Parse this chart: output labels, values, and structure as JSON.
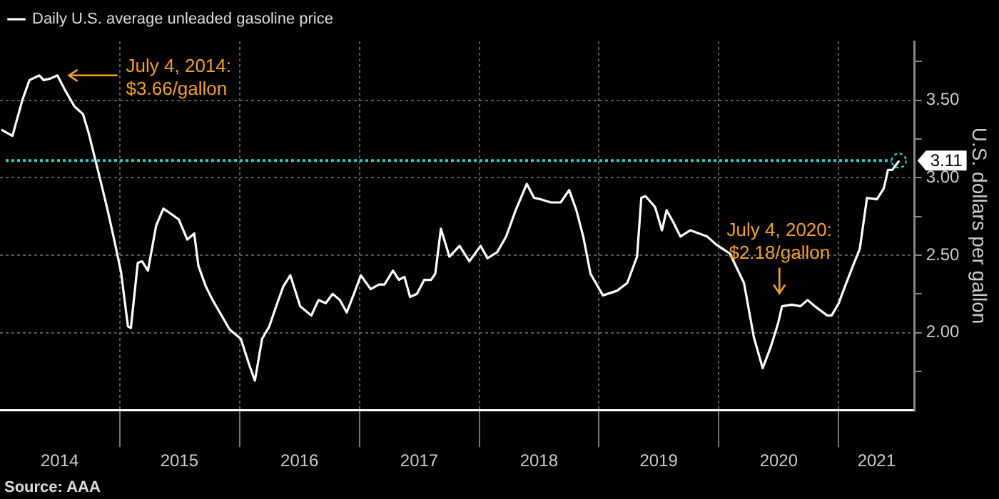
{
  "chart_data": {
    "type": "line",
    "series": [
      {
        "name": "Daily U.S. average unleaded gasoline price",
        "color": "#ffffff",
        "x": [
          "2014-01-05",
          "2014-02-08",
          "2014-03-10",
          "2014-04-01",
          "2014-05-01",
          "2014-05-14",
          "2014-06-04",
          "2014-06-25",
          "2014-07-17",
          "2014-08-16",
          "2014-09-11",
          "2014-09-28",
          "2014-10-24",
          "2014-11-23",
          "2014-12-15",
          "2015-01-05",
          "2015-01-26",
          "2015-02-04",
          "2015-02-25",
          "2015-03-10",
          "2015-03-28",
          "2015-04-22",
          "2015-05-14",
          "2015-06-04",
          "2015-06-30",
          "2015-07-26",
          "2015-08-16",
          "2015-08-29",
          "2015-09-20",
          "2015-10-11",
          "2015-11-02",
          "2015-12-02",
          "2016-01-05",
          "2016-01-31",
          "2016-02-17",
          "2016-03-10",
          "2016-04-01",
          "2016-04-22",
          "2016-05-14",
          "2016-06-04",
          "2016-07-04",
          "2016-08-07",
          "2016-08-29",
          "2016-09-20",
          "2016-10-11",
          "2016-11-02",
          "2016-11-23",
          "2016-12-15",
          "2017-01-05",
          "2017-02-04",
          "2017-03-01",
          "2017-03-18",
          "2017-04-13",
          "2017-05-01",
          "2017-05-18",
          "2017-06-04",
          "2017-06-25",
          "2017-07-17",
          "2017-08-07",
          "2017-08-20",
          "2017-09-06",
          "2017-10-02",
          "2017-11-02",
          "2017-12-02",
          "2018-01-05",
          "2018-01-26",
          "2018-02-25",
          "2018-03-24",
          "2018-04-22",
          "2018-05-26",
          "2018-06-17",
          "2018-07-08",
          "2018-08-07",
          "2018-09-06",
          "2018-10-02",
          "2018-10-24",
          "2018-11-14",
          "2018-12-06",
          "2019-01-13",
          "2019-02-25",
          "2019-03-28",
          "2019-04-27",
          "2019-05-10",
          "2019-05-23",
          "2019-06-21",
          "2019-07-12",
          "2019-07-26",
          "2019-08-16",
          "2019-09-06",
          "2019-10-06",
          "2019-11-27",
          "2019-12-23",
          "2020-02-04",
          "2020-03-18",
          "2020-04-17",
          "2020-05-14",
          "2020-06-08",
          "2020-06-30",
          "2020-07-12",
          "2020-08-11",
          "2020-09-06",
          "2020-09-28",
          "2020-10-20",
          "2020-11-27",
          "2020-12-10",
          "2021-01-01",
          "2021-01-13",
          "2021-02-13",
          "2021-03-06",
          "2021-03-28",
          "2021-04-27",
          "2021-05-18",
          "2021-05-31",
          "2021-06-13",
          "2021-07-04"
        ],
        "values": [
          3.31,
          3.27,
          3.5,
          3.63,
          3.66,
          3.63,
          3.64,
          3.66,
          3.57,
          3.46,
          3.41,
          3.29,
          3.07,
          2.81,
          2.6,
          2.39,
          2.04,
          2.03,
          2.45,
          2.46,
          2.4,
          2.69,
          2.8,
          2.77,
          2.73,
          2.6,
          2.64,
          2.43,
          2.3,
          2.21,
          2.13,
          2.02,
          1.96,
          1.79,
          1.69,
          1.96,
          2.04,
          2.17,
          2.3,
          2.37,
          2.17,
          2.11,
          2.21,
          2.19,
          2.25,
          2.21,
          2.13,
          2.25,
          2.37,
          2.28,
          2.31,
          2.31,
          2.4,
          2.34,
          2.36,
          2.23,
          2.25,
          2.34,
          2.34,
          2.38,
          2.67,
          2.49,
          2.56,
          2.46,
          2.56,
          2.48,
          2.52,
          2.62,
          2.79,
          2.96,
          2.87,
          2.86,
          2.84,
          2.84,
          2.92,
          2.79,
          2.62,
          2.38,
          2.24,
          2.27,
          2.32,
          2.49,
          2.87,
          2.88,
          2.81,
          2.66,
          2.79,
          2.71,
          2.62,
          2.66,
          2.62,
          2.57,
          2.51,
          2.32,
          1.97,
          1.77,
          1.91,
          2.06,
          2.17,
          2.18,
          2.17,
          2.21,
          2.17,
          2.11,
          2.11,
          2.19,
          2.26,
          2.43,
          2.54,
          2.87,
          2.86,
          2.93,
          3.05,
          3.05,
          3.11
        ]
      }
    ],
    "ylabel": "U.S. dollars per gallon",
    "xlim": [
      "2014-01-01",
      "2021-08-20"
    ],
    "xticks": [
      {
        "value": "2014-07-02",
        "label": "2014"
      },
      {
        "value": "2015-01-01",
        "label": null
      },
      {
        "value": "2015-07-02",
        "label": "2015"
      },
      {
        "value": "2016-01-01",
        "label": null
      },
      {
        "value": "2016-07-02",
        "label": "2016"
      },
      {
        "value": "2017-01-01",
        "label": null
      },
      {
        "value": "2017-07-02",
        "label": "2017"
      },
      {
        "value": "2018-01-01",
        "label": null
      },
      {
        "value": "2018-07-02",
        "label": "2018"
      },
      {
        "value": "2019-01-01",
        "label": null
      },
      {
        "value": "2019-07-02",
        "label": "2019"
      },
      {
        "value": "2020-01-01",
        "label": null
      },
      {
        "value": "2020-07-02",
        "label": "2020"
      },
      {
        "value": "2021-01-01",
        "label": null
      },
      {
        "value": "2021-04-26",
        "label": "2021"
      }
    ],
    "ylim": [
      1.5,
      3.88
    ],
    "yticks": [
      {
        "value": 1.75,
        "label": null
      },
      {
        "value": 2,
        "label": "2.00"
      },
      {
        "value": 2.25,
        "label": null
      },
      {
        "value": 2.5,
        "label": "2.50"
      },
      {
        "value": 2.75,
        "label": null
      },
      {
        "value": 3,
        "label": "3.00"
      },
      {
        "value": 3.25,
        "label": null
      },
      {
        "value": 3.5,
        "label": "3.50"
      },
      {
        "value": 3.75,
        "label": null
      }
    ],
    "ref_lines": [
      {
        "axis": "y",
        "value": 3.11,
        "label": "3.11",
        "color": "#2ec8c8",
        "line_style": "dotted"
      }
    ],
    "annotations": [
      {
        "text": "July 4, 2014:\n$3.66/gallon",
        "x": "2014-07-04",
        "y": 3.66
      },
      {
        "text": "July 4, 2020:\n$2.18/gallon",
        "x": "2020-07-04",
        "y": 2.18
      },
      "Source: AAA"
    ],
    "grid": true,
    "legend": "top left"
  }
}
